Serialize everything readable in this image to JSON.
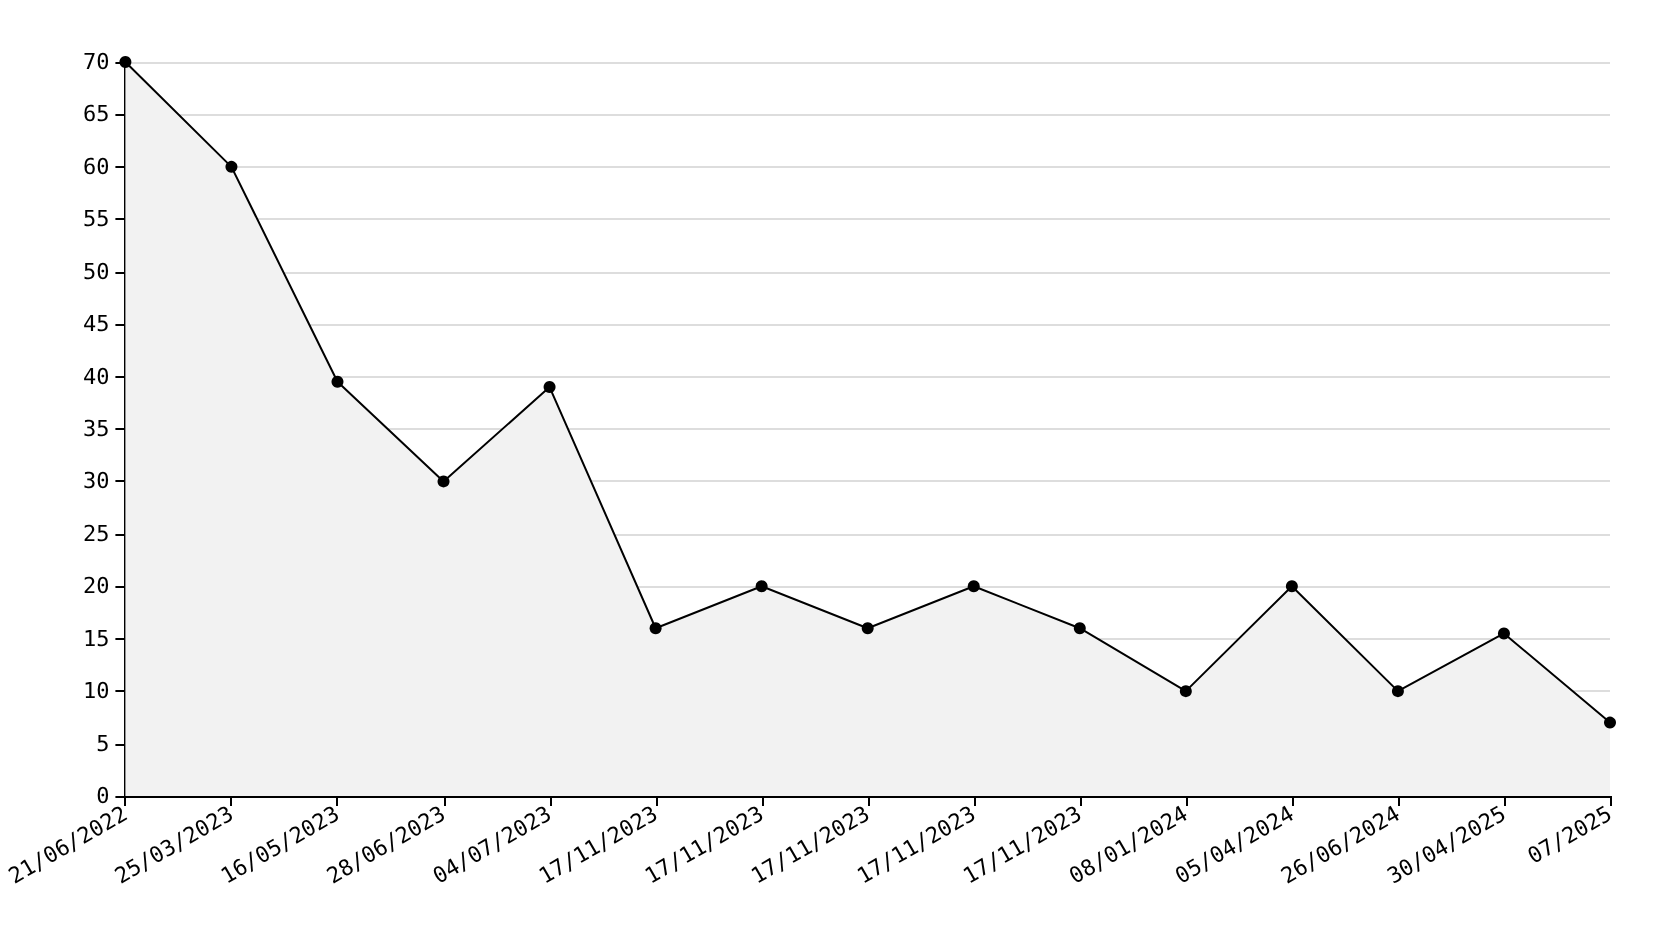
{
  "chart_data": {
    "type": "area",
    "categories": [
      "21/06/2022",
      "25/03/2023",
      "16/05/2023",
      "28/06/2023",
      "04/07/2023",
      "17/11/2023",
      "17/11/2023",
      "17/11/2023",
      "17/11/2023",
      "17/11/2023",
      "08/01/2024",
      "05/04/2024",
      "26/06/2024",
      "30/04/2025",
      "07/2025"
    ],
    "series": [
      {
        "color": "#000000",
        "values": [
          70,
          60,
          39.5,
          30,
          39,
          16,
          20,
          16,
          20,
          16,
          10,
          20,
          10,
          15.5,
          7
        ]
      }
    ],
    "ylim": [
      0,
      70
    ],
    "yticks": [
      0,
      5,
      10,
      15,
      20,
      25,
      30,
      35,
      40,
      45,
      50,
      55,
      60,
      65,
      70
    ],
    "grid": "y",
    "marker": "circle",
    "line_style": "solid"
  }
}
